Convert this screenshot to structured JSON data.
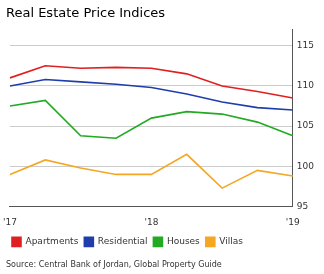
{
  "chart_data": {
    "type": "line",
    "title": "Real Estate Price Indices",
    "annotations": [
      "Source: Central Bank of Jordan, Global Property Guide"
    ],
    "categories": [
      "'17",
      null,
      null,
      null,
      "'18",
      null,
      null,
      null,
      "'19"
    ],
    "series": [
      {
        "name": "Apartments",
        "color": "#e02020",
        "values": [
          111.0,
          112.5,
          112.2,
          112.3,
          112.2,
          111.5,
          110.0,
          109.3,
          108.5
        ]
      },
      {
        "name": "Residential",
        "color": "#1f3eab",
        "values": [
          110.0,
          110.8,
          110.5,
          110.2,
          109.8,
          109.0,
          108.0,
          107.3,
          107.0
        ]
      },
      {
        "name": "Houses",
        "color": "#22aa22",
        "values": [
          107.5,
          108.2,
          103.8,
          103.5,
          106.0,
          106.8,
          106.5,
          105.5,
          103.8
        ]
      },
      {
        "name": "Villas",
        "color": "#f5a623",
        "values": [
          99.0,
          100.8,
          99.8,
          99.0,
          99.0,
          101.5,
          97.3,
          99.5,
          98.8
        ]
      }
    ],
    "ylim": [
      95,
      117
    ],
    "yticks": [
      95,
      100,
      105,
      110,
      115
    ],
    "grid": "y",
    "legend": "bottom",
    "marker": "none"
  }
}
